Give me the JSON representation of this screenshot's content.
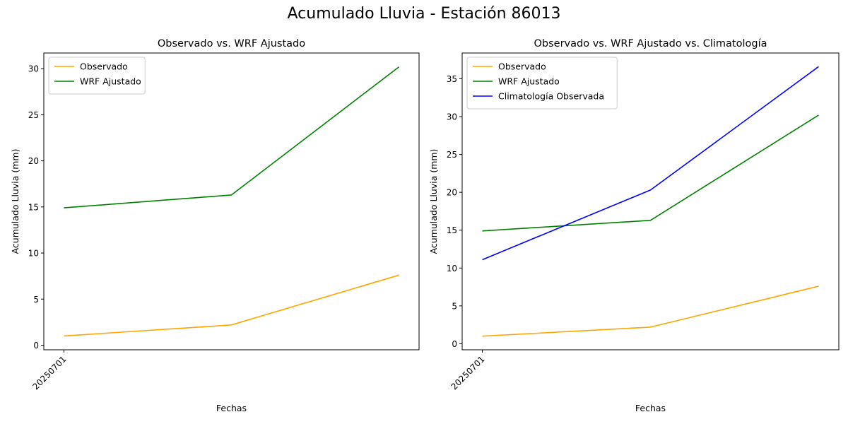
{
  "suptitle": "Acumulado Lluvia - Estación 86013",
  "colors": {
    "observado": "#ffa500",
    "wrf": "#008000",
    "climatologia": "#0000ff"
  },
  "chart_data": [
    {
      "type": "line",
      "title": "Observado vs. WRF Ajustado",
      "xlabel": "Fechas",
      "ylabel": "Acumulado Lluvia (mm)",
      "x": [
        0,
        1,
        2
      ],
      "xtick_labels": [
        "20250701"
      ],
      "xtick_positions": [
        0
      ],
      "ylim": [
        -0.5,
        31.7
      ],
      "yticks": [
        0,
        5,
        10,
        15,
        20,
        25,
        30
      ],
      "legend_position": "upper-left",
      "grid": false,
      "series": [
        {
          "name": "Observado",
          "color_key": "observado",
          "values": [
            1.0,
            2.2,
            7.6
          ]
        },
        {
          "name": "WRF Ajustado",
          "color_key": "wrf",
          "values": [
            14.9,
            16.3,
            30.2
          ]
        }
      ]
    },
    {
      "type": "line",
      "title": "Observado vs. WRF Ajustado vs. Climatología",
      "xlabel": "Fechas",
      "ylabel": "Acumulado Lluvia (mm)",
      "x": [
        0,
        1,
        2
      ],
      "xtick_labels": [
        "20250701"
      ],
      "xtick_positions": [
        0
      ],
      "ylim": [
        -0.8,
        38.4
      ],
      "yticks": [
        0,
        5,
        10,
        15,
        20,
        25,
        30,
        35
      ],
      "legend_position": "upper-left",
      "grid": false,
      "series": [
        {
          "name": "Observado",
          "color_key": "observado",
          "values": [
            1.0,
            2.2,
            7.6
          ]
        },
        {
          "name": "WRF Ajustado",
          "color_key": "wrf",
          "values": [
            14.9,
            16.3,
            30.2
          ]
        },
        {
          "name": "Climatología Observada",
          "color_key": "climatologia",
          "values": [
            11.1,
            20.3,
            36.6
          ]
        }
      ]
    }
  ]
}
